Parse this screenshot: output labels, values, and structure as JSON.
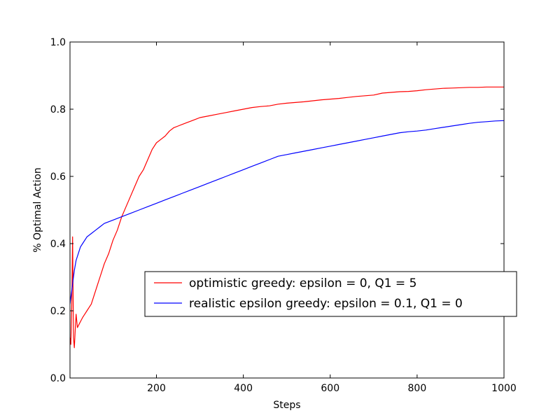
{
  "chart_data": {
    "type": "line",
    "title": "",
    "xlabel": "Steps",
    "ylabel": "% Optimal Action",
    "xlim": [
      1,
      1000
    ],
    "ylim": [
      0.0,
      1.0
    ],
    "xticks": [
      200,
      400,
      600,
      800,
      1000
    ],
    "xtick_labels": [
      "200",
      "400",
      "600",
      "800",
      "1000"
    ],
    "yticks": [
      0.0,
      0.2,
      0.4,
      0.6,
      0.8,
      1.0
    ],
    "ytick_labels": [
      "0.0",
      "0.2",
      "0.4",
      "0.6",
      "0.8",
      "1.0"
    ],
    "grid": false,
    "legend_position": "center-right",
    "series": [
      {
        "name": "optimistic greedy: epsilon = 0, Q1 = 5",
        "color": "#ff0000",
        "x": [
          1,
          3,
          5,
          7,
          9,
          11,
          13,
          15,
          18,
          22,
          26,
          30,
          35,
          40,
          45,
          50,
          55,
          60,
          65,
          70,
          75,
          80,
          90,
          100,
          110,
          120,
          130,
          140,
          150,
          160,
          170,
          180,
          190,
          200,
          210,
          220,
          230,
          240,
          250,
          260,
          270,
          280,
          290,
          300,
          320,
          340,
          360,
          380,
          400,
          420,
          440,
          460,
          480,
          500,
          520,
          540,
          560,
          580,
          600,
          620,
          640,
          660,
          680,
          700,
          720,
          740,
          760,
          780,
          800,
          820,
          840,
          860,
          880,
          900,
          920,
          940,
          960,
          980,
          1000
        ],
        "values": [
          0.12,
          0.1,
          0.21,
          0.42,
          0.12,
          0.09,
          0.14,
          0.19,
          0.15,
          0.16,
          0.17,
          0.18,
          0.19,
          0.2,
          0.21,
          0.22,
          0.24,
          0.26,
          0.28,
          0.3,
          0.32,
          0.34,
          0.37,
          0.41,
          0.44,
          0.48,
          0.51,
          0.54,
          0.57,
          0.6,
          0.62,
          0.65,
          0.68,
          0.7,
          0.71,
          0.72,
          0.735,
          0.745,
          0.75,
          0.755,
          0.76,
          0.765,
          0.77,
          0.775,
          0.78,
          0.785,
          0.79,
          0.795,
          0.8,
          0.805,
          0.808,
          0.81,
          0.815,
          0.818,
          0.82,
          0.822,
          0.825,
          0.828,
          0.83,
          0.832,
          0.835,
          0.838,
          0.84,
          0.842,
          0.848,
          0.85,
          0.852,
          0.853,
          0.855,
          0.858,
          0.86,
          0.862,
          0.863,
          0.864,
          0.865,
          0.865,
          0.866,
          0.866,
          0.866
        ]
      },
      {
        "name": "realistic epsilon greedy: epsilon = 0.1, Q1 = 0",
        "color": "#0000ff",
        "x": [
          1,
          3,
          5,
          8,
          11,
          15,
          20,
          25,
          30,
          40,
          50,
          60,
          70,
          80,
          90,
          100,
          120,
          140,
          160,
          180,
          200,
          220,
          240,
          260,
          280,
          300,
          320,
          340,
          360,
          380,
          400,
          420,
          440,
          460,
          480,
          500,
          520,
          540,
          560,
          580,
          600,
          620,
          640,
          660,
          680,
          700,
          720,
          740,
          760,
          780,
          800,
          820,
          840,
          860,
          880,
          900,
          920,
          940,
          960,
          980,
          1000
        ],
        "values": [
          0.22,
          0.24,
          0.26,
          0.29,
          0.32,
          0.35,
          0.37,
          0.39,
          0.4,
          0.42,
          0.43,
          0.44,
          0.45,
          0.46,
          0.465,
          0.47,
          0.48,
          0.49,
          0.5,
          0.51,
          0.52,
          0.53,
          0.54,
          0.55,
          0.56,
          0.57,
          0.58,
          0.59,
          0.6,
          0.61,
          0.62,
          0.63,
          0.64,
          0.65,
          0.66,
          0.665,
          0.67,
          0.675,
          0.68,
          0.685,
          0.69,
          0.695,
          0.7,
          0.705,
          0.71,
          0.715,
          0.72,
          0.725,
          0.73,
          0.733,
          0.735,
          0.738,
          0.742,
          0.746,
          0.75,
          0.754,
          0.758,
          0.761,
          0.763,
          0.765,
          0.766
        ]
      }
    ]
  }
}
